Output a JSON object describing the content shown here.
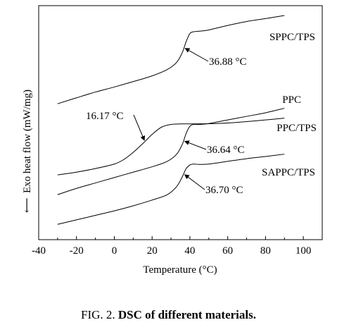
{
  "chart_data": {
    "type": "line",
    "title": "",
    "xlabel": "Temperature (°C)",
    "ylabel": "Exo heat flow (mW/mg)",
    "y_arrow": "⟵",
    "xlim": [
      -40,
      110
    ],
    "x_ticks": [
      -40,
      -20,
      0,
      20,
      40,
      60,
      80,
      100
    ],
    "y_ticks_shown": false,
    "grid": false,
    "legend": "none",
    "series": [
      {
        "name": "SPPC/TPS",
        "x": [
          -30,
          -20,
          -10,
          0,
          10,
          20,
          28,
          33,
          36,
          38,
          40,
          42,
          45,
          50,
          60,
          70,
          80,
          90
        ],
        "y": [
          7.55,
          7.88,
          8.2,
          8.48,
          8.78,
          9.1,
          9.45,
          9.85,
          10.4,
          11.0,
          11.45,
          11.55,
          11.58,
          11.65,
          11.9,
          12.12,
          12.28,
          12.45
        ]
      },
      {
        "name": "PPC",
        "x": [
          -30,
          -20,
          -10,
          0,
          5,
          10,
          16.17,
          20,
          25,
          30,
          35,
          40,
          50,
          60,
          70,
          80,
          90
        ],
        "y": [
          3.6,
          3.75,
          3.95,
          4.2,
          4.45,
          4.85,
          5.45,
          5.85,
          6.25,
          6.4,
          6.43,
          6.43,
          6.44,
          6.48,
          6.56,
          6.65,
          6.75
        ]
      },
      {
        "name": "PPC/TPS",
        "x": [
          -30,
          -20,
          -10,
          0,
          10,
          20,
          28,
          33,
          36,
          38,
          40,
          42,
          45,
          50,
          60,
          70,
          80,
          90
        ],
        "y": [
          2.5,
          2.85,
          3.15,
          3.45,
          3.75,
          4.05,
          4.35,
          4.75,
          5.3,
          5.9,
          6.3,
          6.4,
          6.4,
          6.45,
          6.65,
          6.85,
          7.05,
          7.3
        ]
      },
      {
        "name": "SAPPC/TPS",
        "x": [
          -30,
          -20,
          -10,
          0,
          10,
          20,
          28,
          33,
          36,
          38,
          40,
          42,
          45,
          50,
          60,
          70,
          80,
          90
        ],
        "y": [
          0.85,
          1.1,
          1.35,
          1.6,
          1.88,
          2.2,
          2.5,
          2.95,
          3.5,
          3.95,
          4.15,
          4.2,
          4.18,
          4.2,
          4.35,
          4.5,
          4.62,
          4.75
        ]
      }
    ],
    "annotations": [
      {
        "text": "36.88 °C",
        "series": "SPPC/TPS",
        "at_x": 36.88
      },
      {
        "text": "16.17 °C",
        "series": "PPC",
        "at_x": 16.17
      },
      {
        "text": "36.64 °C",
        "series": "PPC/TPS",
        "at_x": 36.64
      },
      {
        "text": "36.70 °C",
        "series": "SAPPC/TPS",
        "at_x": 36.7
      }
    ]
  },
  "caption": {
    "prefix": "FIG. 2. ",
    "title": "DSC of different materials."
  }
}
